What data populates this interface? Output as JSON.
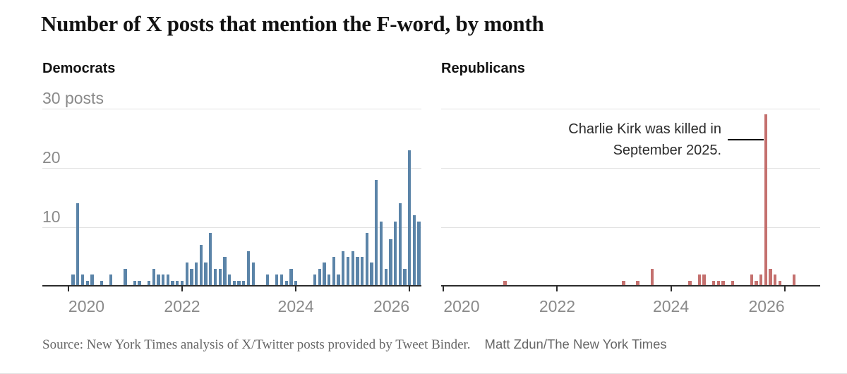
{
  "title": "Number of X posts that mention the F-word, by month",
  "y_axis": {
    "labels": [
      "30 posts",
      "20",
      "10"
    ],
    "values": [
      30,
      20,
      10
    ],
    "max": 30
  },
  "annotation": {
    "line1": "Charlie Kirk was killed in",
    "line2": "September 2025."
  },
  "source": {
    "text": "Source: New York Times analysis of X/Twitter posts provided by Tweet Binder.",
    "credit": "Matt Zdun/The New York Times"
  },
  "colors": {
    "democrat_bar": "#5b84a8",
    "republican_bar": "#c4706e",
    "gridline": "#e2e2e2",
    "axis": "#2b2b2b",
    "label_gray": "#8a8a8a",
    "title_ink": "#121212"
  },
  "chart_data": [
    {
      "type": "bar",
      "title": "Democrats",
      "ylabel": "posts",
      "ylim": [
        0,
        30
      ],
      "y_gridlines": [
        10,
        20,
        30
      ],
      "x_start": "2019-08",
      "x_end": "2026-03",
      "x_tick_labels": [
        "2020",
        "2022",
        "2024",
        "2026"
      ],
      "x_tick_month_index": [
        5,
        29,
        53,
        77
      ],
      "values": [
        0,
        0,
        0,
        0,
        0,
        0,
        2,
        14,
        2,
        1,
        2,
        0,
        1,
        0,
        2,
        0,
        0,
        3,
        0,
        1,
        1,
        0,
        1,
        3,
        2,
        2,
        2,
        1,
        1,
        1,
        4,
        3,
        4,
        7,
        4,
        9,
        3,
        3,
        5,
        2,
        1,
        1,
        1,
        6,
        4,
        0,
        0,
        2,
        0,
        2,
        2,
        1,
        3,
        1,
        0,
        0,
        0,
        2,
        3,
        4,
        2,
        5,
        2,
        6,
        5,
        6,
        5,
        5,
        9,
        4,
        18,
        11,
        3,
        8,
        11,
        14,
        3,
        23,
        12,
        11
      ]
    },
    {
      "type": "bar",
      "title": "Republicans",
      "ylabel": "posts",
      "ylim": [
        0,
        30
      ],
      "y_gridlines": [
        10,
        20,
        30
      ],
      "x_start": "2020-01",
      "x_end": "2026-08",
      "x_tick_labels": [
        "2020",
        "2022",
        "2024",
        "2026"
      ],
      "x_tick_month_index": [
        0,
        24,
        48,
        72
      ],
      "annotation": "Charlie Kirk was killed in September 2025.",
      "annotation_target_month": "2025-09",
      "values": [
        0,
        0,
        0,
        0,
        0,
        0,
        0,
        0,
        0,
        0,
        0,
        0,
        0,
        1,
        0,
        0,
        0,
        0,
        0,
        0,
        0,
        0,
        0,
        0,
        0,
        0,
        0,
        0,
        0,
        0,
        0,
        0,
        0,
        0,
        0,
        0,
        0,
        0,
        1,
        0,
        0,
        1,
        0,
        0,
        3,
        0,
        0,
        0,
        0,
        0,
        0,
        0,
        1,
        0,
        2,
        2,
        0,
        1,
        1,
        1,
        0,
        1,
        0,
        0,
        0,
        2,
        1,
        2,
        29,
        3,
        2,
        1,
        0,
        0,
        2,
        0,
        0,
        0,
        0,
        0
      ]
    }
  ]
}
